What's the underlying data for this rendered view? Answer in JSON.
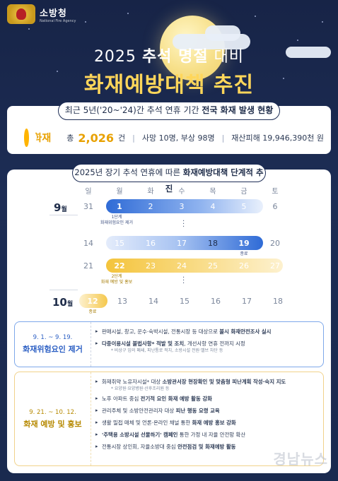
{
  "header": {
    "logo_name": "소방청",
    "logo_eng": "National Fire Agency"
  },
  "title": {
    "line1_year": "2025",
    "line1_bold": "추석 명절",
    "line1_tail": "대비",
    "line2": "화재예방대책 추진"
  },
  "stats": {
    "header_pre": "최근 5년('20~'24)간 추석 연휴 기간",
    "header_bold": "전국 화재 발생 현황",
    "icon": "fire-icon",
    "label": "화재",
    "total_pre": "총",
    "total_num": "2,026",
    "total_unit": "건",
    "casualties": "사망 10명, 부상 98명",
    "damage": "재산피해 19,946,390천 원"
  },
  "calendar": {
    "header_pre": "2025년 장기 추석 연휴에 따른",
    "header_bold": "화재예방대책 단계적 추진",
    "weekdays": [
      "일",
      "월",
      "화",
      "수",
      "목",
      "금",
      "토"
    ],
    "month_sep": {
      "num": "9",
      "unit": "월"
    },
    "month_oct": {
      "num": "10",
      "unit": "월"
    },
    "week1": [
      "31",
      "1",
      "2",
      "3",
      "4",
      "5",
      "6"
    ],
    "week2": [
      "14",
      "15",
      "16",
      "17",
      "18",
      "19",
      "20"
    ],
    "week3": [
      "21",
      "22",
      "23",
      "24",
      "25",
      "26",
      "27"
    ],
    "week4": [
      "12",
      "13",
      "14",
      "15",
      "16",
      "17",
      "18"
    ],
    "note_stage1": "1단계",
    "note_stage1_desc": "화재위험요인 제거",
    "note_end1": "종료",
    "note_stage2": "2단계",
    "note_stage2_desc": "화재 예방 및 홍보",
    "note_end2": "종료"
  },
  "stage1": {
    "date": "9. 1. ~ 9. 19.",
    "title": "화재위험요인 제거",
    "items": [
      {
        "pre": "판매시설, 창고, 운수·숙박시설, 전통시장 등 대상으로 ",
        "bold": "불시 화재안전조사 실시",
        "post": ""
      },
      {
        "pre": "",
        "bold": "다중이용시설 불법사항* 적발 및 조치",
        "post": ", 개선사항 연휴 전까지 시정"
      }
    ],
    "sub": "* 비상구 임의 폐쇄, 피난통로 적치, 소방시설 전원·밸브 차단 등"
  },
  "stage2": {
    "date": "9. 21. ~ 10. 12.",
    "title": "화재 예방 및 홍보",
    "items": [
      {
        "pre": "화재취약 노유자시설* 대상 ",
        "bold": "소방관서장 현장확인 및 맞춤형 피난계획 작성·숙지 지도",
        "post": ""
      },
      {
        "pre": "노후 아파트 중심 ",
        "bold": "전기적 요인 화재 예방 활동 강화",
        "post": ""
      },
      {
        "pre": "관리주체 및 소방안전관리자 대상 ",
        "bold": "피난 행동 요령 교육",
        "post": ""
      },
      {
        "pre": "생활 밀접 매체 및 언론·온라인 채널 통한 ",
        "bold": "화재 예방 홍보 강화",
        "post": ""
      },
      {
        "pre": "'주택용 소방시설 선물하기' 캠페인",
        "bold": "",
        "post": " 통한 가정 내 자율 안전망 확산"
      },
      {
        "pre": "전통시장 상인회, 자율소방대 중심 ",
        "bold": "안전점검 및 화재예방 활동",
        "post": ""
      }
    ],
    "sub": "* 요양원·요양병원·산후조리원 등"
  },
  "watermark": "경남뉴스"
}
